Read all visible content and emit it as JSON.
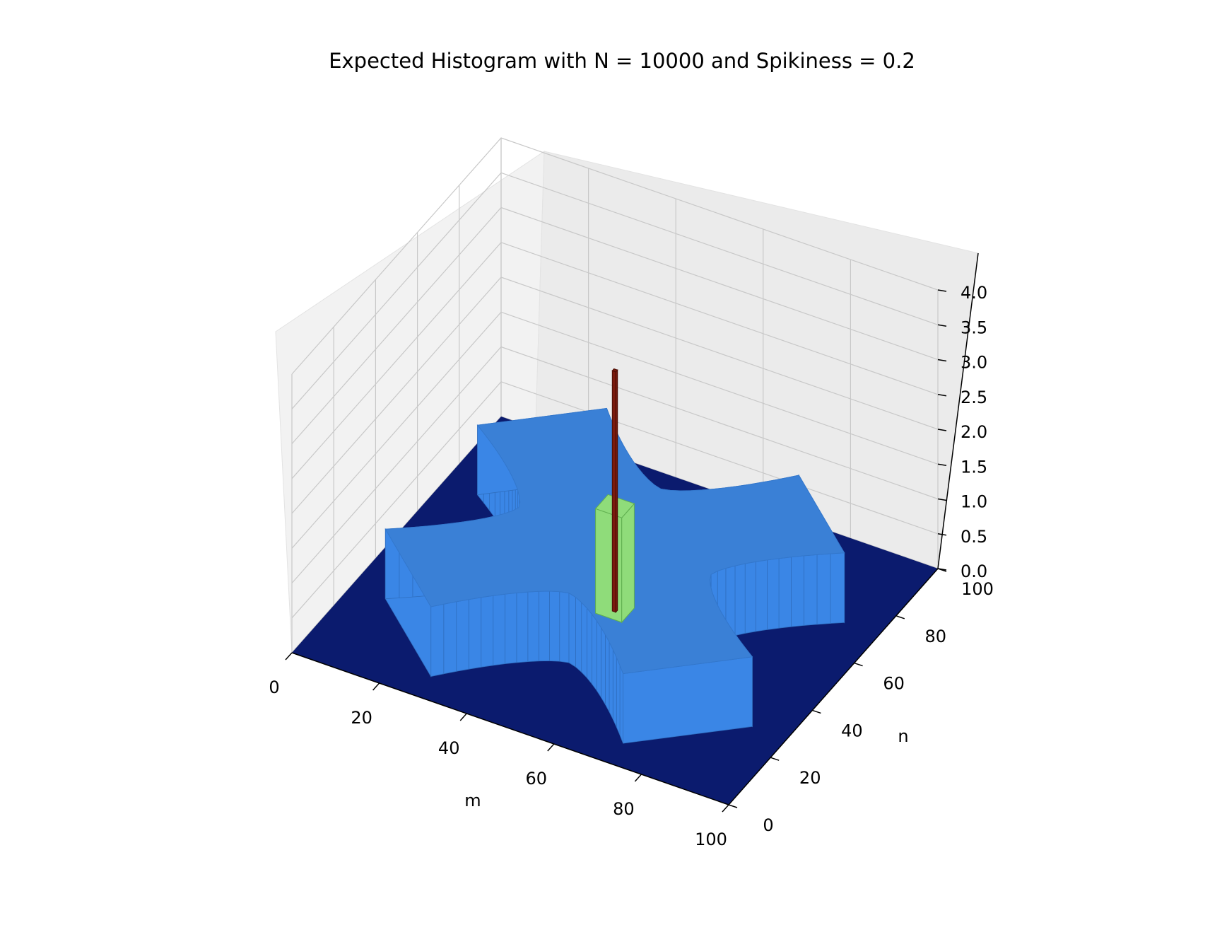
{
  "chart_data": {
    "type": "bar3d",
    "title": "Expected Histogram with N = 10000 and Spikiness = 0.2",
    "xlabel": "m",
    "ylabel": "n",
    "zlabel": "",
    "x_ticks": [
      "0",
      "20",
      "40",
      "60",
      "80",
      "100"
    ],
    "y_ticks": [
      "0",
      "20",
      "40",
      "60",
      "80",
      "100"
    ],
    "z_ticks": [
      "0.0",
      "0.5",
      "1.0",
      "1.5",
      "2.0",
      "2.5",
      "3.0",
      "3.5",
      "4.0"
    ],
    "xlim": [
      0,
      100
    ],
    "ylim": [
      0,
      100
    ],
    "zlim": [
      0,
      4.0
    ],
    "grid": true,
    "bars": [
      {
        "label": "floor",
        "m_range": [
          0,
          100
        ],
        "n_range": [
          0,
          100
        ],
        "height": 0.0,
        "color": "#0b1b6e"
      },
      {
        "label": "cross-plateau",
        "shape": "four-armed star centered near m=50, n=50",
        "height": 1.0,
        "color": "#3a86e6"
      },
      {
        "label": "center-green",
        "m_range": [
          47,
          53
        ],
        "n_range": [
          47,
          53
        ],
        "height": 1.5,
        "color": "#8fdc7a"
      },
      {
        "label": "center-spike",
        "m": 50,
        "n": 50,
        "height": 3.45,
        "color": "#7a1a0d"
      }
    ]
  },
  "colors": {
    "floor": "#0b1b6e",
    "plateau": "#3a86e6",
    "green": "#8fdc7a",
    "spike": "#7a1a0d",
    "pane": "#f2f2f2",
    "grid": "#c8c8c8"
  }
}
